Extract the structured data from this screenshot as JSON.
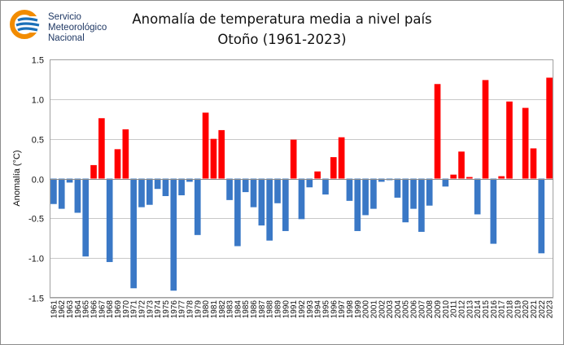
{
  "header": {
    "org_line1": "Servicio",
    "org_line2": "Meteorológico",
    "org_line3": "Nacional",
    "logo_colors": {
      "orange": "#f28c00",
      "blue": "#1b70b8"
    }
  },
  "chart_data": {
    "type": "bar",
    "title": "Anomalía de temperatura media a nivel país",
    "subtitle": "Otoño (1961-2023)",
    "xlabel": "",
    "ylabel": "Anomalía (°C)",
    "ylim": [
      -1.5,
      1.5
    ],
    "yticks": [
      "-1.5",
      "-1.0",
      "-0.5",
      "0.0",
      "0.5",
      "1.0",
      "1.5"
    ],
    "ytick_values": [
      -1.5,
      -1.0,
      -0.5,
      0.0,
      0.5,
      1.0,
      1.5
    ],
    "grid": true,
    "colors": {
      "positive": "#ff0000",
      "negative": "#3a78c6"
    },
    "categories": [
      "1961",
      "1962",
      "1963",
      "1964",
      "1965",
      "1966",
      "1967",
      "1968",
      "1969",
      "1970",
      "1971",
      "1972",
      "1973",
      "1974",
      "1975",
      "1976",
      "1977",
      "1978",
      "1979",
      "1980",
      "1981",
      "1982",
      "1983",
      "1984",
      "1985",
      "1986",
      "1987",
      "1988",
      "1989",
      "1990",
      "1991",
      "1992",
      "1993",
      "1994",
      "1995",
      "1996",
      "1997",
      "1998",
      "1999",
      "2000",
      "2001",
      "2002",
      "2003",
      "2004",
      "2005",
      "2006",
      "2007",
      "2008",
      "2009",
      "2010",
      "2011",
      "2012",
      "2013",
      "2014",
      "2015",
      "2016",
      "2017",
      "2018",
      "2019",
      "2020",
      "2021",
      "2022",
      "2023"
    ],
    "values": [
      -0.32,
      -0.38,
      -0.05,
      -0.43,
      -0.98,
      0.17,
      0.76,
      -1.05,
      0.37,
      0.62,
      -1.38,
      -0.36,
      -0.33,
      -0.13,
      -0.22,
      -1.41,
      -0.21,
      -0.04,
      -0.71,
      0.83,
      0.5,
      0.61,
      -0.27,
      -0.85,
      -0.17,
      -0.36,
      -0.59,
      -0.78,
      -0.31,
      -0.66,
      0.49,
      -0.51,
      -0.11,
      0.09,
      -0.2,
      0.27,
      0.52,
      -0.28,
      -0.66,
      -0.46,
      -0.38,
      -0.04,
      -0.02,
      -0.24,
      -0.55,
      -0.38,
      -0.67,
      -0.34,
      1.19,
      -0.1,
      0.05,
      0.34,
      0.02,
      -0.45,
      1.24,
      -0.82,
      0.03,
      0.97,
      0.0,
      0.89,
      0.38,
      -0.94,
      1.27
    ]
  }
}
